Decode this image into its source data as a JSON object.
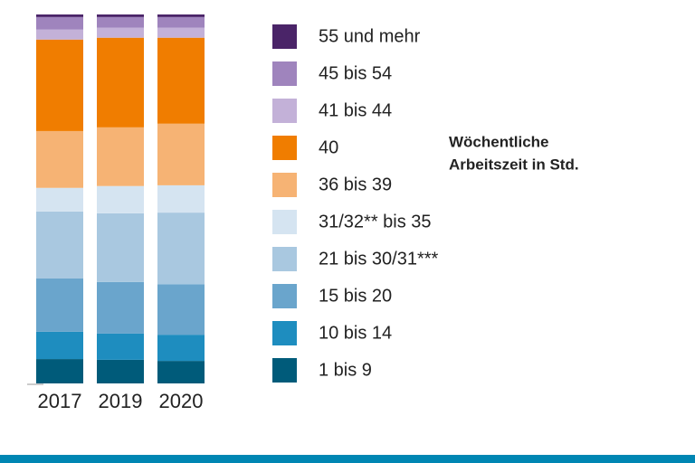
{
  "chart_data": {
    "type": "stacked_bar",
    "categories": [
      "2017",
      "2019",
      "2020"
    ],
    "ylim": [
      0,
      100
    ],
    "legend_title": [
      "Wöchentliche",
      "Arbeitszeit in Std."
    ],
    "series": [
      {
        "name": "1 bis 9",
        "color": "#005b7a",
        "values": [
          6.6,
          6.4,
          6.1
        ]
      },
      {
        "name": "10 bis 14",
        "color": "#1e8dbf",
        "values": [
          7.4,
          7.1,
          7.1
        ]
      },
      {
        "name": "15 bis 20",
        "color": "#6aa5cc",
        "values": [
          14.5,
          14.0,
          13.7
        ]
      },
      {
        "name": "21 bis 30/31***",
        "color": "#a9c8e0",
        "values": [
          18.1,
          18.6,
          19.4
        ]
      },
      {
        "name": "31/32** bis 35",
        "color": "#d5e4f1",
        "values": [
          6.4,
          7.4,
          7.4
        ]
      },
      {
        "name": "36 bis 39",
        "color": "#f6b374",
        "values": [
          15.4,
          15.9,
          16.7
        ]
      },
      {
        "name": "40",
        "color": "#f07d00",
        "values": [
          24.8,
          24.3,
          23.3
        ]
      },
      {
        "name": "41 bis 44",
        "color": "#c3b1d8",
        "values": [
          2.7,
          2.7,
          2.7
        ]
      },
      {
        "name": "45 bis 54",
        "color": "#9f84bd",
        "values": [
          3.4,
          2.9,
          2.9
        ]
      },
      {
        "name": "55 und mehr",
        "color": "#4a2468",
        "values": [
          0.7,
          0.7,
          0.7
        ]
      }
    ]
  }
}
